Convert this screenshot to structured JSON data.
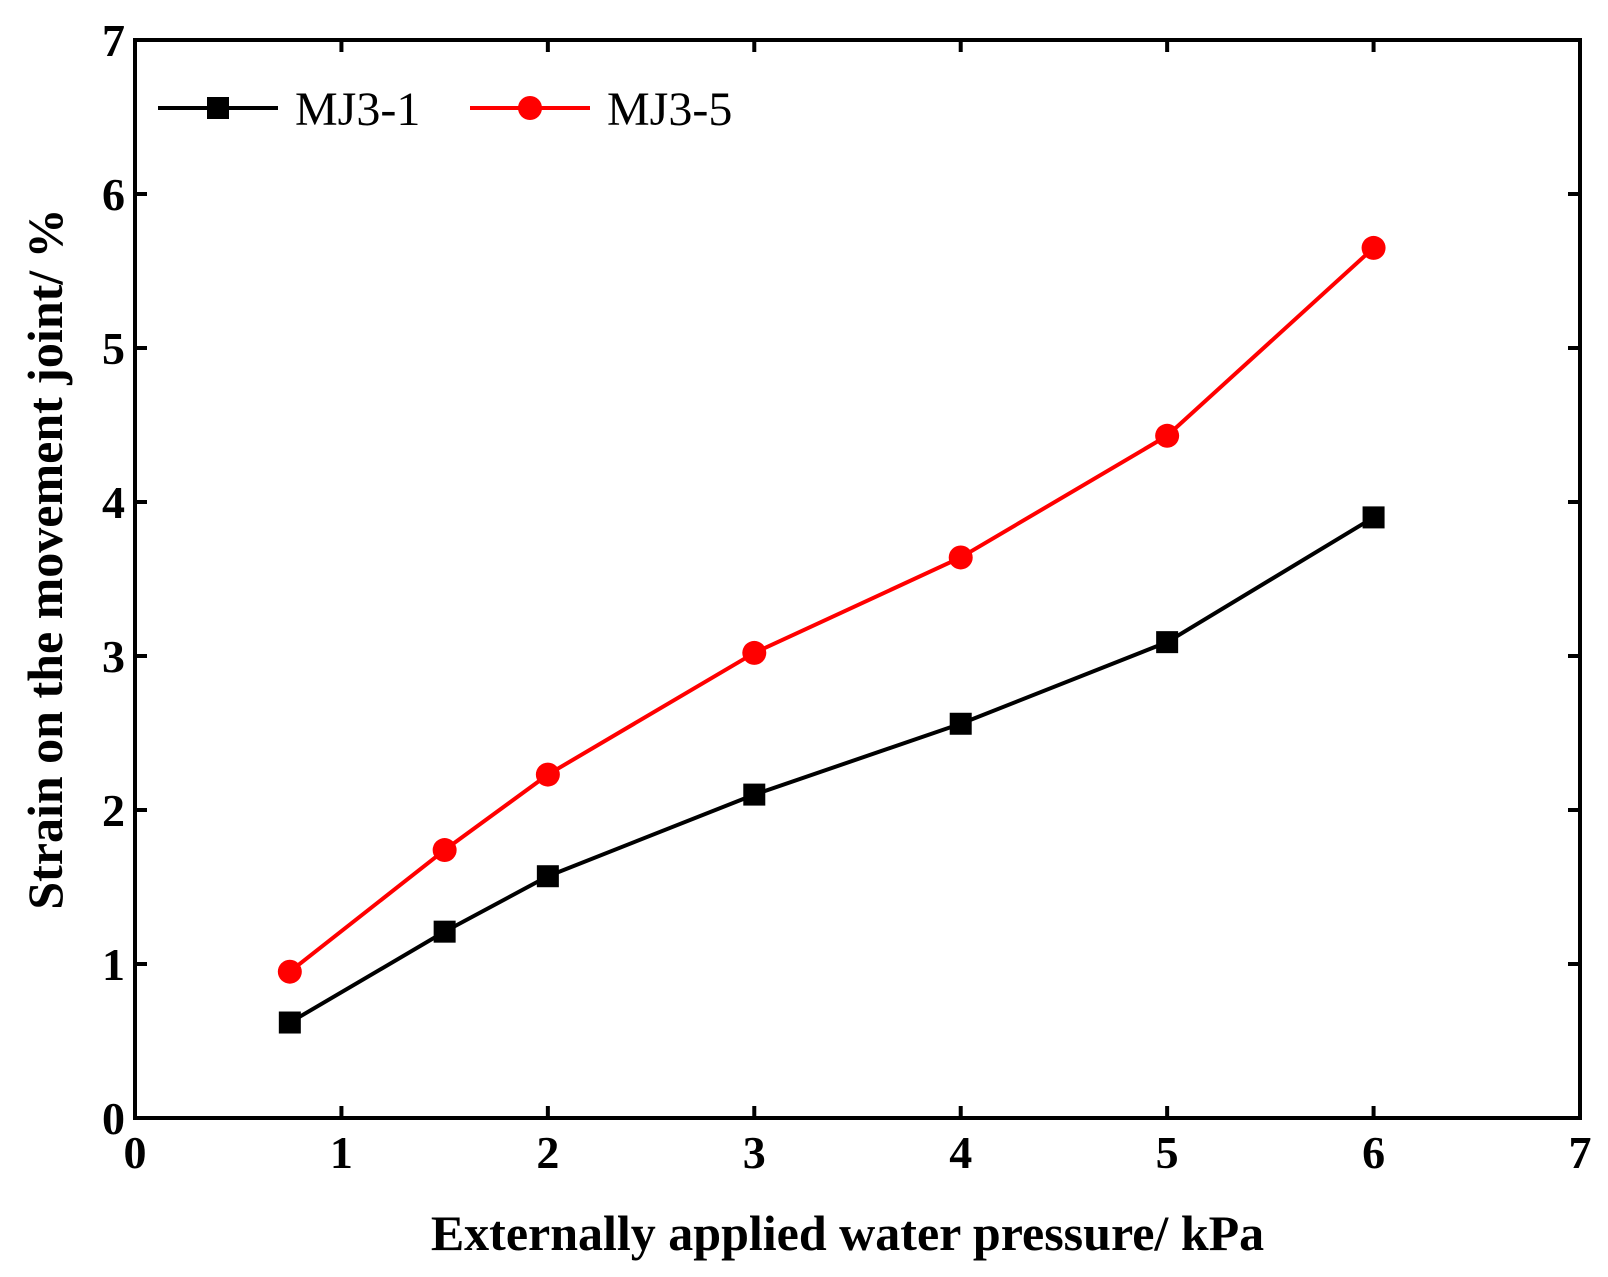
{
  "chart_data": {
    "type": "line",
    "title": "",
    "xlabel": "Externally applied water pressure/ kPa",
    "ylabel": "Strain on the movement joint/ %",
    "xlim": [
      0,
      7
    ],
    "ylim": [
      0,
      7
    ],
    "xticks": [
      "0",
      "1",
      "2",
      "3",
      "4",
      "5",
      "6",
      "7"
    ],
    "yticks": [
      "0",
      "1",
      "2",
      "3",
      "4",
      "5",
      "6",
      "7"
    ],
    "grid": false,
    "legend_position": "top-left",
    "series": [
      {
        "name": "MJ3-1",
        "color": "#000000",
        "marker": "square",
        "x": [
          0.75,
          1.5,
          2,
          3,
          4,
          5,
          6
        ],
        "y": [
          0.62,
          1.21,
          1.57,
          2.1,
          2.56,
          3.09,
          3.9
        ]
      },
      {
        "name": "MJ3-5",
        "color": "#ff0000",
        "marker": "circle",
        "x": [
          0.75,
          1.5,
          2,
          3,
          4,
          5,
          6
        ],
        "y": [
          0.95,
          1.74,
          2.23,
          3.02,
          3.64,
          4.43,
          5.65
        ]
      }
    ]
  }
}
